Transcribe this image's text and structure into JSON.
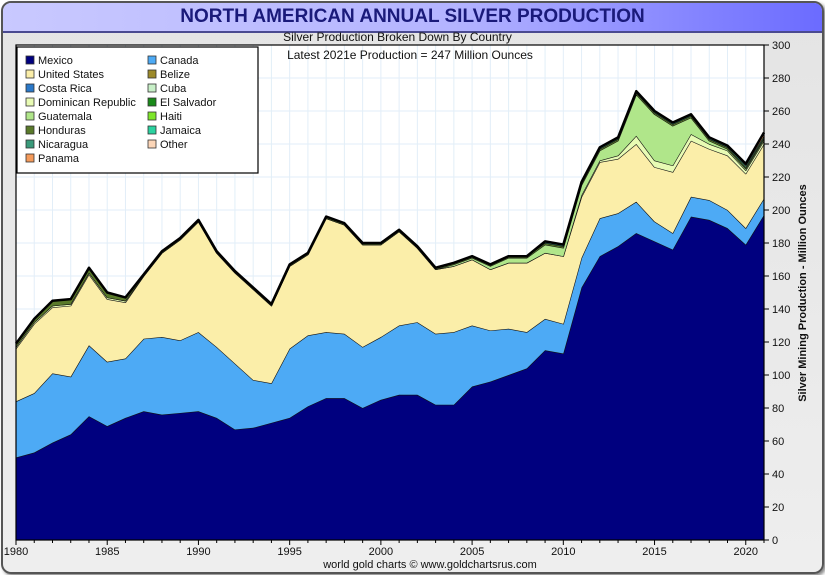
{
  "header": {
    "title": "NORTH AMERICAN ANNUAL SILVER PRODUCTION",
    "subtitle": "Silver Production Broken Down By Country",
    "annotation": "Latest 2021e Production = 247 Million Ounces",
    "footer": "world gold charts © www.goldchartsrus.com"
  },
  "chart_data": {
    "type": "area",
    "stacked": true,
    "title": "NORTH AMERICAN ANNUAL SILVER PRODUCTION",
    "subtitle": "Silver Production Broken Down By Country",
    "annotations": [
      "Latest 2021e Production = 247 Million Ounces"
    ],
    "xlabel": "",
    "ylabel": "Silver Mining Production - Million Ounces",
    "ylim": [
      0,
      300
    ],
    "xlim": [
      1980,
      2021
    ],
    "grid": true,
    "legend_position": "top-left",
    "y_axis_side": "right",
    "x_ticks": [
      1980,
      1985,
      1990,
      1995,
      2000,
      2005,
      2010,
      2015,
      2020
    ],
    "y_ticks": [
      0,
      20,
      40,
      60,
      80,
      100,
      120,
      140,
      160,
      180,
      200,
      220,
      240,
      260,
      280,
      300
    ],
    "x": [
      1980,
      1981,
      1982,
      1983,
      1984,
      1985,
      1986,
      1987,
      1988,
      1989,
      1990,
      1991,
      1992,
      1993,
      1994,
      1995,
      1996,
      1997,
      1998,
      1999,
      2000,
      2001,
      2002,
      2003,
      2004,
      2005,
      2006,
      2007,
      2008,
      2009,
      2010,
      2011,
      2012,
      2013,
      2014,
      2015,
      2016,
      2017,
      2018,
      2019,
      2020,
      2021
    ],
    "series": [
      {
        "name": "Mexico",
        "color": "#00007f",
        "values": [
          50,
          53,
          59,
          64,
          75,
          69,
          74,
          78,
          76,
          77,
          78,
          74,
          67,
          68,
          71,
          74,
          81,
          86,
          86,
          80,
          85,
          88,
          88,
          82,
          82,
          93,
          96,
          100,
          104,
          115,
          113,
          153,
          172,
          178,
          186,
          181,
          176,
          196,
          194,
          189,
          179,
          197
        ]
      },
      {
        "name": "Canada",
        "color": "#4daaf5",
        "values": [
          34,
          36,
          42,
          35,
          43,
          39,
          36,
          44,
          47,
          44,
          48,
          43,
          40,
          29,
          24,
          42,
          43,
          40,
          39,
          37,
          38,
          42,
          44,
          43,
          44,
          37,
          31,
          28,
          22,
          19,
          18,
          18,
          23,
          20,
          19,
          12,
          10,
          12,
          12,
          11,
          10,
          10
        ]
      },
      {
        "name": "United States",
        "color": "#fbeea9",
        "values": [
          32,
          42,
          40,
          43,
          43,
          38,
          34,
          38,
          51,
          61,
          67,
          57,
          55,
          55,
          47,
          50,
          49,
          69,
          66,
          62,
          56,
          57,
          45,
          39,
          40,
          40,
          37,
          40,
          42,
          40,
          41,
          37,
          34,
          33,
          35,
          33,
          37,
          34,
          31,
          33,
          33,
          33
        ]
      },
      {
        "name": "Belize",
        "color": "#9c8a2a",
        "values": [
          0,
          0,
          0,
          0,
          0,
          0,
          0,
          0,
          0,
          0,
          0,
          0,
          0,
          0,
          0,
          0,
          0,
          0,
          0,
          0,
          0,
          0,
          0,
          0,
          0,
          0,
          0,
          0,
          0,
          0,
          0,
          0,
          0,
          0,
          0,
          0,
          0,
          0,
          0,
          0,
          0,
          0
        ]
      },
      {
        "name": "Costa Rica",
        "color": "#2a78c8",
        "values": [
          0,
          0,
          0,
          0,
          0,
          0,
          0,
          0,
          0,
          0,
          0,
          0,
          0,
          0,
          0,
          0,
          0,
          0,
          0,
          0,
          0,
          0,
          0,
          0,
          0,
          0,
          0,
          0,
          0,
          0,
          0,
          0,
          0,
          0,
          0,
          0,
          0,
          0,
          0,
          0,
          0,
          0
        ]
      },
      {
        "name": "Cuba",
        "color": "#c8f0c8",
        "values": [
          0,
          0,
          0,
          0,
          0,
          0,
          0,
          0,
          0,
          0,
          0,
          0,
          0,
          0,
          0,
          0,
          0,
          0,
          0,
          0,
          0,
          0,
          0,
          0,
          0,
          0,
          0,
          0,
          0,
          0,
          0,
          0,
          0,
          0,
          0,
          0,
          0,
          0,
          0,
          0,
          0,
          0
        ]
      },
      {
        "name": "Dominican Republic",
        "color": "#e8fbb4",
        "values": [
          1,
          1,
          1,
          1,
          1,
          1,
          1,
          0,
          0,
          0,
          0,
          0,
          0,
          0,
          0,
          0,
          0,
          0,
          0,
          0,
          0,
          0,
          0,
          0,
          0,
          0,
          0,
          0,
          0,
          0,
          0,
          1,
          1,
          2,
          5,
          4,
          4,
          4,
          3,
          3,
          2,
          2
        ]
      },
      {
        "name": "El Salvador",
        "color": "#1a8a1a",
        "values": [
          0,
          0,
          0,
          0,
          0,
          0,
          0,
          0,
          0,
          0,
          0,
          0,
          0,
          0,
          0,
          0,
          0,
          0,
          0,
          0,
          0,
          0,
          0,
          0,
          0,
          0,
          0,
          0,
          0,
          0,
          0,
          0,
          0,
          0,
          0,
          0,
          0,
          0,
          0,
          0,
          0,
          0
        ]
      },
      {
        "name": "Guatemala",
        "color": "#b0e68a",
        "values": [
          0,
          0,
          0,
          0,
          0,
          0,
          0,
          0,
          0,
          0,
          0,
          0,
          0,
          0,
          0,
          0,
          0,
          0,
          0,
          0,
          0,
          0,
          0,
          0,
          1,
          1,
          2,
          3,
          3,
          5,
          5,
          6,
          6,
          9,
          25,
          28,
          24,
          10,
          2,
          1,
          1,
          1
        ]
      },
      {
        "name": "Haiti",
        "color": "#7ee62a",
        "values": [
          0,
          0,
          0,
          0,
          0,
          0,
          0,
          0,
          0,
          0,
          0,
          0,
          0,
          0,
          0,
          0,
          0,
          0,
          0,
          0,
          0,
          0,
          0,
          0,
          0,
          0,
          0,
          0,
          0,
          0,
          0,
          0,
          0,
          0,
          0,
          0,
          0,
          0,
          0,
          0,
          0,
          0
        ]
      },
      {
        "name": "Honduras",
        "color": "#5a7a2a",
        "values": [
          2,
          2,
          3,
          3,
          3,
          3,
          2,
          1,
          1,
          1,
          1,
          1,
          1,
          1,
          1,
          1,
          1,
          1,
          1,
          1,
          1,
          1,
          1,
          1,
          1,
          1,
          1,
          1,
          1,
          1,
          1,
          1,
          1,
          1,
          1,
          1,
          1,
          1,
          1,
          1,
          1,
          1
        ]
      },
      {
        "name": "Jamaica",
        "color": "#2ad2a0",
        "values": [
          0,
          0,
          0,
          0,
          0,
          0,
          0,
          0,
          0,
          0,
          0,
          0,
          0,
          0,
          0,
          0,
          0,
          0,
          0,
          0,
          0,
          0,
          0,
          0,
          0,
          0,
          0,
          0,
          0,
          0,
          0,
          0,
          0,
          0,
          0,
          0,
          0,
          0,
          0,
          0,
          0,
          0
        ]
      },
      {
        "name": "Nicaragua",
        "color": "#3a9a7a",
        "values": [
          0,
          0,
          0,
          0,
          0,
          0,
          0,
          0,
          0,
          0,
          0,
          0,
          0,
          0,
          0,
          0,
          0,
          0,
          0,
          0,
          0,
          0,
          0,
          0,
          0,
          0,
          0,
          0,
          0,
          1,
          1,
          1,
          1,
          1,
          1,
          1,
          1,
          1,
          1,
          1,
          1,
          1
        ]
      },
      {
        "name": "Other",
        "color": "#fcd6b8",
        "values": [
          0,
          0,
          0,
          0,
          0,
          0,
          0,
          0,
          0,
          0,
          0,
          0,
          0,
          0,
          0,
          0,
          0,
          0,
          0,
          0,
          0,
          0,
          0,
          0,
          0,
          0,
          0,
          0,
          0,
          0,
          0,
          0,
          0,
          0,
          0,
          0,
          0,
          0,
          0,
          0,
          0,
          0
        ]
      },
      {
        "name": "Panama",
        "color": "#f49a5a",
        "values": [
          0,
          0,
          0,
          0,
          0,
          0,
          0,
          0,
          0,
          0,
          0,
          0,
          0,
          0,
          0,
          0,
          0,
          0,
          0,
          0,
          0,
          0,
          0,
          0,
          0,
          0,
          0,
          0,
          0,
          0,
          0,
          0,
          0,
          0,
          0,
          0,
          0,
          0,
          0,
          0,
          1,
          2
        ]
      }
    ],
    "legend": [
      {
        "name": "Mexico",
        "color": "#00007f"
      },
      {
        "name": "Canada",
        "color": "#4daaf5"
      },
      {
        "name": "United States",
        "color": "#fbeea9"
      },
      {
        "name": "Belize",
        "color": "#9c8a2a"
      },
      {
        "name": "Costa Rica",
        "color": "#2a78c8"
      },
      {
        "name": "Cuba",
        "color": "#c8f0c8"
      },
      {
        "name": "Dominican Republic",
        "color": "#e8fbb4"
      },
      {
        "name": "El Salvador",
        "color": "#1a8a1a"
      },
      {
        "name": "Guatemala",
        "color": "#b0e68a"
      },
      {
        "name": "Haiti",
        "color": "#7ee62a"
      },
      {
        "name": "Honduras",
        "color": "#5a7a2a"
      },
      {
        "name": "Jamaica",
        "color": "#2ad2a0"
      },
      {
        "name": "Nicaragua",
        "color": "#3a9a7a"
      },
      {
        "name": "Other",
        "color": "#fcd6b8"
      },
      {
        "name": "Panama",
        "color": "#f49a5a"
      }
    ]
  }
}
